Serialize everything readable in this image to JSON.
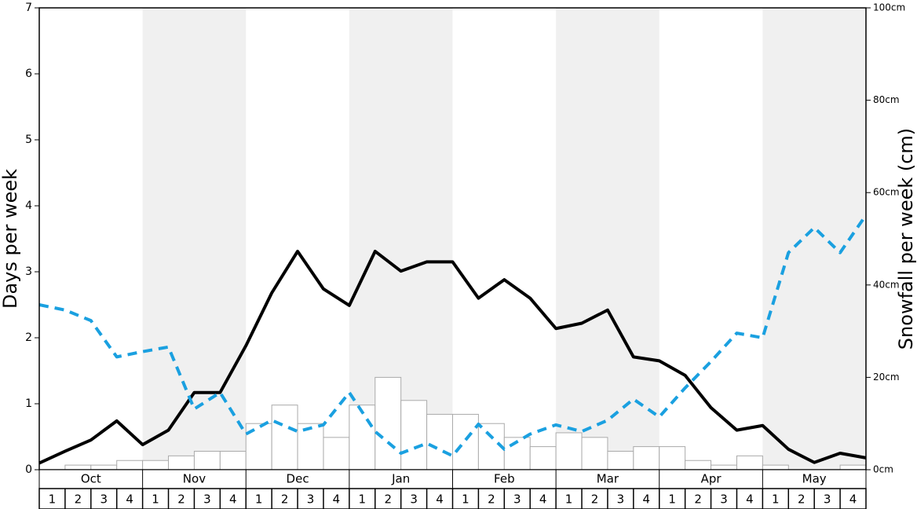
{
  "chart_data": {
    "type": "combo",
    "y_label": "Days per week",
    "y2_label": "Snowfall per week (cm)",
    "months": [
      "Oct",
      "Nov",
      "Dec",
      "Jan",
      "Feb",
      "Mar",
      "Apr",
      "May"
    ],
    "categories": [
      "1",
      "2",
      "3",
      "4",
      "1",
      "2",
      "3",
      "4",
      "1",
      "2",
      "3",
      "4",
      "1",
      "2",
      "3",
      "4",
      "1",
      "2",
      "3",
      "4",
      "1",
      "2",
      "3",
      "4",
      "1",
      "2",
      "3",
      "4",
      "1",
      "2",
      "3",
      "4"
    ],
    "shaded_months": [
      1,
      3,
      5,
      7
    ],
    "shade_color": "#f0f0f0",
    "xlim": [
      0,
      32
    ],
    "ylim": [
      0,
      7
    ],
    "yticks": [
      0,
      1,
      2,
      3,
      4,
      5,
      6,
      7
    ],
    "y2lim": [
      0,
      100
    ],
    "y2ticks": [
      {
        "value": 0,
        "label": "0cm"
      },
      {
        "value": 20,
        "label": "20cm"
      },
      {
        "value": 40,
        "label": "40cm"
      },
      {
        "value": 60,
        "label": "60cm"
      },
      {
        "value": 80,
        "label": "80cm"
      },
      {
        "value": 100,
        "label": "100cm"
      }
    ],
    "series": [
      {
        "type": "bar",
        "axis": "y2",
        "color": "#ffffff",
        "edge_color": "#aaaaaa",
        "values": [
          0,
          1,
          1,
          2,
          2,
          3,
          4,
          4,
          10,
          14,
          10,
          7,
          14,
          20,
          15,
          12,
          12,
          10,
          7,
          5,
          8,
          7,
          4,
          5,
          5,
          2,
          1,
          3,
          1,
          0,
          0,
          1
        ]
      },
      {
        "type": "line",
        "color": "#000000",
        "dash": false,
        "x": [
          0,
          1,
          2,
          3,
          4,
          5,
          6,
          7,
          8,
          9,
          10,
          11,
          12,
          13,
          14,
          15,
          16,
          17,
          18,
          19,
          20,
          21,
          22,
          23,
          24,
          25,
          26,
          27,
          28,
          29,
          30,
          31,
          32
        ],
        "values": [
          0.1,
          0.28,
          0.45,
          0.74,
          0.38,
          0.6,
          1.17,
          1.17,
          1.88,
          2.68,
          3.31,
          2.74,
          2.49,
          3.31,
          3.01,
          3.15,
          3.15,
          2.6,
          2.88,
          2.6,
          2.14,
          2.22,
          2.42,
          1.71,
          1.65,
          1.43,
          0.94,
          0.6,
          0.67,
          0.31,
          0.11,
          0.25,
          0.18
        ]
      },
      {
        "type": "line",
        "color": "#1aa0e0",
        "dash": true,
        "x": [
          0,
          1,
          2,
          3,
          4,
          5,
          6,
          7,
          8,
          9,
          10,
          11,
          12,
          13,
          14,
          15,
          16,
          17,
          18,
          19,
          20,
          21,
          22,
          23,
          24,
          25,
          26,
          27,
          28,
          29,
          30,
          31,
          32
        ],
        "values": [
          2.5,
          2.42,
          2.26,
          1.71,
          1.79,
          1.86,
          0.92,
          1.17,
          0.54,
          0.75,
          0.58,
          0.68,
          1.17,
          0.58,
          0.25,
          0.4,
          0.21,
          0.69,
          0.31,
          0.54,
          0.68,
          0.58,
          0.75,
          1.07,
          0.8,
          1.24,
          1.64,
          2.07,
          2.0,
          3.29,
          3.67,
          3.29,
          3.86
        ]
      }
    ]
  }
}
